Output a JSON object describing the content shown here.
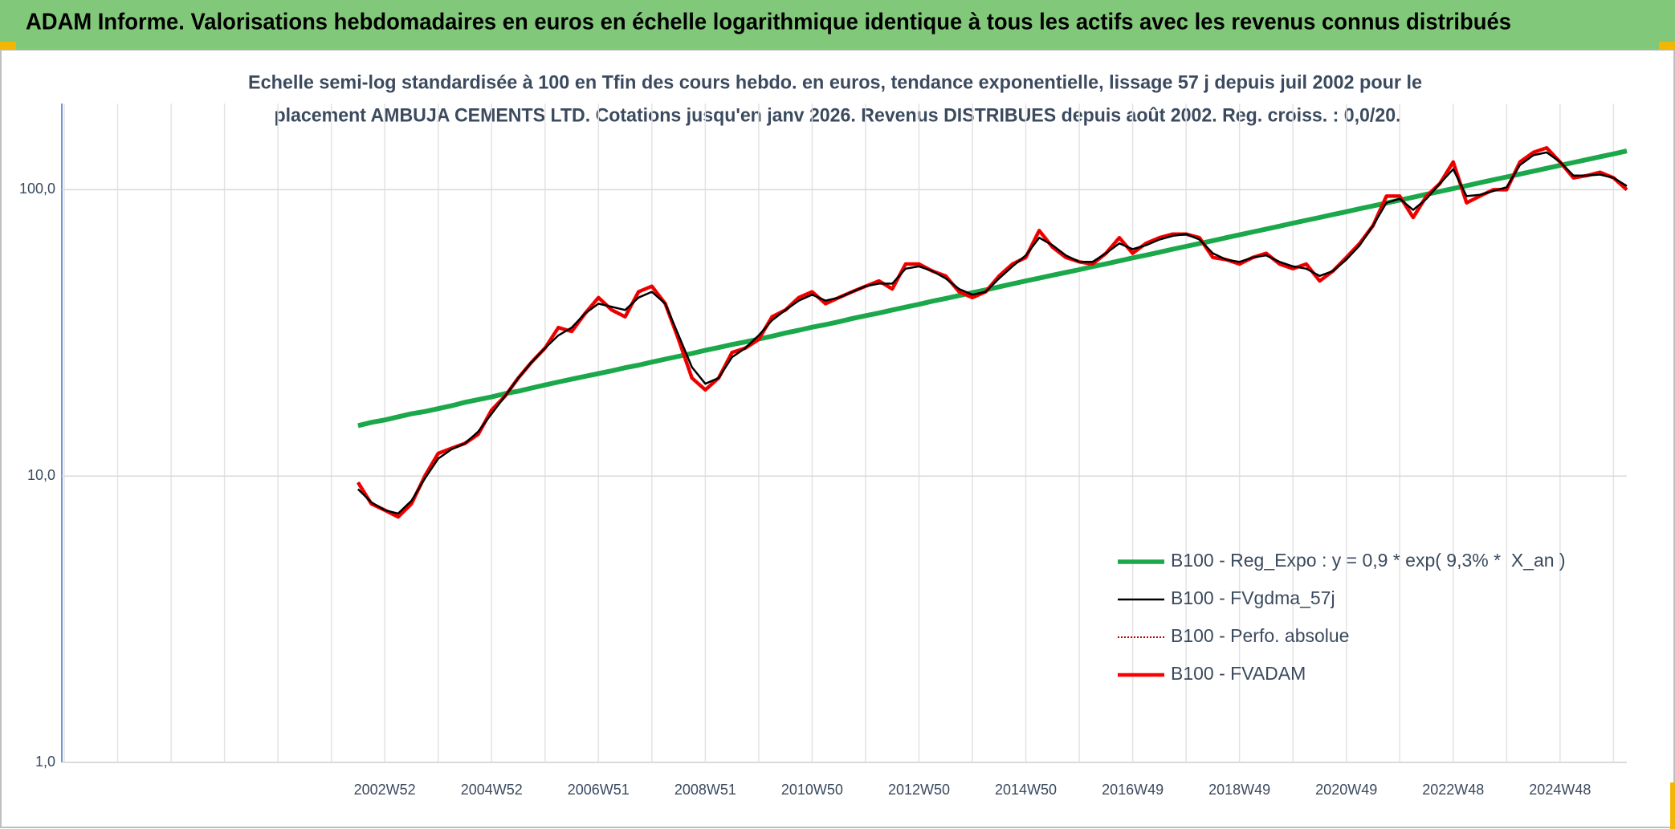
{
  "header": {
    "title": "ADAM Informe. Valorisations hebdomadaires en euros en échelle logarithmique identique à tous les actifs avec les revenus connus distribués"
  },
  "chart_data": {
    "type": "line",
    "title": [
      "Echelle semi-log standardisée à 100 en Tfin des cours hebdo. en euros, tendance exponentielle, lissage 57 j depuis juil 2002 pour le",
      "placement AMBUJA CEMENTS LTD. Cotations jusqu'en janv 2026. Revenus DISTRIBUES depuis août 2002. Reg. croiss. : 0,0/20."
    ],
    "categories": [
      null,
      null,
      null,
      null,
      null,
      null,
      null,
      null,
      null,
      null,
      null,
      null,
      null,
      null,
      null,
      null,
      null,
      null,
      null,
      null,
      null,
      null,
      null,
      null,
      "2002W52",
      null,
      null,
      null,
      null,
      null,
      null,
      null,
      "2004W52",
      null,
      null,
      null,
      null,
      null,
      null,
      null,
      "2006W51",
      null,
      null,
      null,
      null,
      null,
      null,
      null,
      "2008W51",
      null,
      null,
      null,
      null,
      null,
      null,
      null,
      "2010W50",
      null,
      null,
      null,
      null,
      null,
      null,
      null,
      "2012W50",
      null,
      null,
      null,
      null,
      null,
      null,
      null,
      "2014W50",
      null,
      null,
      null,
      null,
      null,
      null,
      null,
      "2016W49",
      null,
      null,
      null,
      null,
      null,
      null,
      null,
      "2018W49",
      null,
      null,
      null,
      null,
      null,
      null,
      null,
      "2020W49",
      null,
      null,
      null,
      null,
      null,
      null,
      null,
      "2022W48",
      null,
      null,
      null,
      null,
      null,
      null,
      null,
      "2024W48",
      null,
      null,
      null,
      null,
      null
    ],
    "series": [
      {
        "name": "B100 - Reg_Expo : y = 0,9 * exp( 9,3% *  X_an )",
        "color": "#1aa84a",
        "style": "solid",
        "values": [
          null,
          null,
          null,
          null,
          null,
          null,
          null,
          null,
          null,
          null,
          null,
          null,
          null,
          null,
          null,
          null,
          null,
          null,
          null,
          null,
          null,
          null,
          15.0,
          15.4,
          15.7,
          16.1,
          16.5,
          16.8,
          17.2,
          17.6,
          18.1,
          18.5,
          18.9,
          19.4,
          19.8,
          20.3,
          20.8,
          21.3,
          21.8,
          22.3,
          22.8,
          23.3,
          23.9,
          24.4,
          25.0,
          25.6,
          26.2,
          26.8,
          27.5,
          28.1,
          28.8,
          29.4,
          30.1,
          30.8,
          31.6,
          32.3,
          33.1,
          33.8,
          34.6,
          35.5,
          36.3,
          37.1,
          38.0,
          38.9,
          39.8,
          40.8,
          41.7,
          42.7,
          43.7,
          44.7,
          45.8,
          46.9,
          48.0,
          49.1,
          50.3,
          51.4,
          52.6,
          53.9,
          55.1,
          56.4,
          57.8,
          59.1,
          60.5,
          62.0,
          63.4,
          64.9,
          66.4,
          68.0,
          69.6,
          71.2,
          72.9,
          74.6,
          76.4,
          78.2,
          80.0,
          81.9,
          83.8,
          85.8,
          87.8,
          89.9,
          92.0,
          94.1,
          96.4,
          98.6,
          101.0,
          103.3,
          105.8,
          108.3,
          110.8,
          113.4,
          116.1,
          118.8,
          121.6,
          124.5,
          127.4,
          130.4,
          133.4,
          136.6
        ]
      },
      {
        "name": "B100 - FVgdma_57j",
        "color": "#000000",
        "style": "solid",
        "values": [
          null,
          null,
          null,
          null,
          null,
          null,
          null,
          null,
          null,
          null,
          null,
          null,
          null,
          null,
          null,
          null,
          null,
          null,
          null,
          null,
          null,
          null,
          9.0,
          8.1,
          7.6,
          7.4,
          8.2,
          9.8,
          11.5,
          12.4,
          13.0,
          14.3,
          16.5,
          19,
          22,
          25,
          28,
          31,
          33,
          37,
          40,
          39,
          38,
          42,
          44,
          40,
          31,
          24,
          21,
          22,
          26,
          28,
          31,
          35,
          38,
          41,
          43,
          41,
          42,
          44,
          46,
          47,
          47,
          53,
          54,
          52,
          49,
          45,
          43,
          44,
          49,
          54,
          59,
          68,
          64,
          59,
          56,
          56,
          60,
          65,
          62,
          64,
          67,
          69,
          70,
          67,
          60,
          57,
          56,
          58,
          59,
          56,
          54,
          53,
          50,
          52,
          57,
          64,
          75,
          90,
          93,
          85,
          93,
          105,
          118,
          95,
          96,
          99,
          102,
          122,
          132,
          135,
          125,
          112,
          112,
          113,
          110,
          103
        ]
      },
      {
        "name": "B100 - Perfo. absolue",
        "color": "#c00000",
        "style": "dotted",
        "values": [
          null,
          null,
          null,
          null,
          null,
          null,
          null,
          null,
          null,
          null,
          null,
          null,
          null,
          null,
          null,
          null,
          null,
          null,
          null,
          null,
          null,
          null,
          9.5,
          8.0,
          7.6,
          7.2,
          8.0,
          10.0,
          12.0,
          12.5,
          13.0,
          14.0,
          17.0,
          19,
          22,
          25,
          28,
          33,
          32,
          37,
          42,
          38,
          36,
          44,
          46,
          40,
          30,
          22,
          20,
          22,
          27,
          28,
          30,
          36,
          38,
          42,
          44,
          40,
          42,
          44,
          46,
          48,
          45,
          55,
          55,
          52,
          50,
          44,
          42,
          44,
          50,
          55,
          58,
          72,
          63,
          58,
          56,
          55,
          60,
          68,
          60,
          65,
          68,
          70,
          70,
          68,
          58,
          57,
          55,
          58,
          60,
          55,
          53,
          55,
          48,
          52,
          58,
          65,
          75,
          95,
          95,
          80,
          95,
          105,
          125,
          90,
          95,
          100,
          100,
          125,
          135,
          140,
          125,
          110,
          112,
          115,
          110,
          100
        ]
      },
      {
        "name": "B100 - FVADAM",
        "color": "#ff0000",
        "style": "solid",
        "values": [
          null,
          null,
          null,
          null,
          null,
          null,
          null,
          null,
          null,
          null,
          null,
          null,
          null,
          null,
          null,
          null,
          null,
          null,
          null,
          null,
          null,
          null,
          9.5,
          8.0,
          7.6,
          7.2,
          8.0,
          10.0,
          12.0,
          12.5,
          13.0,
          14.0,
          17.0,
          19,
          22,
          25,
          28,
          33,
          32,
          37,
          42,
          38,
          36,
          44,
          46,
          40,
          30,
          22,
          20,
          22,
          27,
          28,
          30,
          36,
          38,
          42,
          44,
          40,
          42,
          44,
          46,
          48,
          45,
          55,
          55,
          52,
          50,
          44,
          42,
          44,
          50,
          55,
          58,
          72,
          63,
          58,
          56,
          55,
          60,
          68,
          60,
          65,
          68,
          70,
          70,
          68,
          58,
          57,
          55,
          58,
          60,
          55,
          53,
          55,
          48,
          52,
          58,
          65,
          75,
          95,
          95,
          80,
          95,
          105,
          125,
          90,
          95,
          100,
          100,
          125,
          135,
          140,
          125,
          110,
          112,
          115,
          110,
          100
        ]
      }
    ],
    "ylim": [
      1,
      200
    ],
    "ylog": true,
    "yticks": [
      {
        "value": 1,
        "label": "1,0"
      },
      {
        "value": 10,
        "label": "10,0"
      },
      {
        "value": 100,
        "label": "100,0"
      }
    ],
    "grid": true,
    "legend": "lower right"
  }
}
